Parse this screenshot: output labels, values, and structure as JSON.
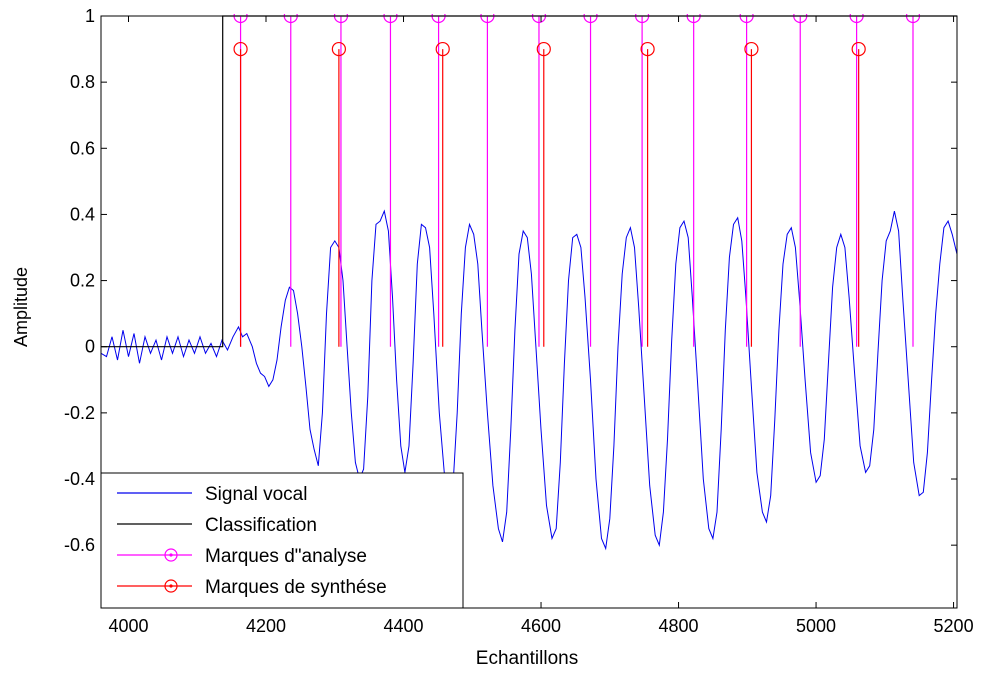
{
  "chart_data": {
    "type": "line",
    "title": "",
    "xlabel": "Echantillons",
    "ylabel": "Amplitude",
    "xlim": [
      3960,
      5205
    ],
    "ylim": [
      -0.79,
      1.0
    ],
    "grid": false,
    "legend_position": "bottom-left",
    "x_ticks": [
      4000,
      4200,
      4400,
      4600,
      4800,
      5000,
      5200
    ],
    "x_tick_labels": [
      "4000",
      "4200",
      "4400",
      "4600",
      "4800",
      "5000",
      "5200"
    ],
    "y_ticks": [
      1,
      0.8,
      0.6,
      0.4,
      0.2,
      0,
      -0.2,
      -0.4,
      -0.6
    ],
    "y_tick_labels": [
      "1",
      "0.8",
      "0.6",
      "0.4",
      "0.2",
      "0",
      "-0.2",
      "-0.4",
      "-0.6"
    ],
    "series": [
      {
        "name": "Signal vocal",
        "color": "#0000ee",
        "kind": "line",
        "points": [
          [
            3960,
            -0.02
          ],
          [
            3968,
            -0.03
          ],
          [
            3976,
            0.03
          ],
          [
            3984,
            -0.04
          ],
          [
            3992,
            0.05
          ],
          [
            4000,
            -0.03
          ],
          [
            4008,
            0.04
          ],
          [
            4016,
            -0.05
          ],
          [
            4024,
            0.03
          ],
          [
            4032,
            -0.02
          ],
          [
            4040,
            0.02
          ],
          [
            4048,
            -0.04
          ],
          [
            4056,
            0.03
          ],
          [
            4064,
            -0.02
          ],
          [
            4072,
            0.03
          ],
          [
            4080,
            -0.03
          ],
          [
            4088,
            0.02
          ],
          [
            4096,
            -0.02
          ],
          [
            4104,
            0.03
          ],
          [
            4112,
            -0.02
          ],
          [
            4120,
            0.01
          ],
          [
            4128,
            -0.03
          ],
          [
            4136,
            0.02
          ],
          [
            4144,
            -0.01
          ],
          [
            4152,
            0.03
          ],
          [
            4160,
            0.06
          ],
          [
            4166,
            0.03
          ],
          [
            4172,
            0.04
          ],
          [
            4180,
            0.0
          ],
          [
            4186,
            -0.05
          ],
          [
            4192,
            -0.08
          ],
          [
            4198,
            -0.09
          ],
          [
            4204,
            -0.12
          ],
          [
            4210,
            -0.1
          ],
          [
            4216,
            -0.04
          ],
          [
            4222,
            0.06
          ],
          [
            4228,
            0.14
          ],
          [
            4234,
            0.18
          ],
          [
            4240,
            0.17
          ],
          [
            4246,
            0.1
          ],
          [
            4252,
            0.0
          ],
          [
            4258,
            -0.12
          ],
          [
            4264,
            -0.25
          ],
          [
            4270,
            -0.31
          ],
          [
            4276,
            -0.36
          ],
          [
            4282,
            -0.2
          ],
          [
            4288,
            0.1
          ],
          [
            4294,
            0.3
          ],
          [
            4300,
            0.32
          ],
          [
            4306,
            0.3
          ],
          [
            4312,
            0.2
          ],
          [
            4318,
            0.0
          ],
          [
            4324,
            -0.2
          ],
          [
            4330,
            -0.35
          ],
          [
            4336,
            -0.4
          ],
          [
            4342,
            -0.37
          ],
          [
            4348,
            -0.15
          ],
          [
            4354,
            0.2
          ],
          [
            4360,
            0.37
          ],
          [
            4366,
            0.38
          ],
          [
            4372,
            0.41
          ],
          [
            4378,
            0.35
          ],
          [
            4384,
            0.15
          ],
          [
            4390,
            -0.1
          ],
          [
            4396,
            -0.3
          ],
          [
            4402,
            -0.38
          ],
          [
            4408,
            -0.3
          ],
          [
            4414,
            -0.05
          ],
          [
            4420,
            0.25
          ],
          [
            4426,
            0.37
          ],
          [
            4432,
            0.36
          ],
          [
            4438,
            0.3
          ],
          [
            4444,
            0.1
          ],
          [
            4452,
            -0.2
          ],
          [
            4460,
            -0.4
          ],
          [
            4466,
            -0.48
          ],
          [
            4472,
            -0.42
          ],
          [
            4478,
            -0.2
          ],
          [
            4484,
            0.1
          ],
          [
            4490,
            0.3
          ],
          [
            4496,
            0.37
          ],
          [
            4502,
            0.34
          ],
          [
            4508,
            0.25
          ],
          [
            4514,
            0.05
          ],
          [
            4522,
            -0.2
          ],
          [
            4530,
            -0.42
          ],
          [
            4538,
            -0.55
          ],
          [
            4544,
            -0.59
          ],
          [
            4550,
            -0.5
          ],
          [
            4556,
            -0.25
          ],
          [
            4562,
            0.05
          ],
          [
            4568,
            0.28
          ],
          [
            4574,
            0.35
          ],
          [
            4580,
            0.33
          ],
          [
            4586,
            0.22
          ],
          [
            4592,
            0.02
          ],
          [
            4600,
            -0.25
          ],
          [
            4608,
            -0.48
          ],
          [
            4616,
            -0.58
          ],
          [
            4622,
            -0.55
          ],
          [
            4628,
            -0.35
          ],
          [
            4634,
            -0.05
          ],
          [
            4640,
            0.2
          ],
          [
            4646,
            0.33
          ],
          [
            4652,
            0.34
          ],
          [
            4658,
            0.3
          ],
          [
            4664,
            0.15
          ],
          [
            4672,
            -0.1
          ],
          [
            4680,
            -0.4
          ],
          [
            4688,
            -0.58
          ],
          [
            4694,
            -0.61
          ],
          [
            4700,
            -0.52
          ],
          [
            4706,
            -0.3
          ],
          [
            4712,
            0.0
          ],
          [
            4718,
            0.22
          ],
          [
            4724,
            0.33
          ],
          [
            4730,
            0.36
          ],
          [
            4736,
            0.3
          ],
          [
            4742,
            0.12
          ],
          [
            4750,
            -0.15
          ],
          [
            4758,
            -0.42
          ],
          [
            4766,
            -0.57
          ],
          [
            4772,
            -0.6
          ],
          [
            4778,
            -0.5
          ],
          [
            4784,
            -0.28
          ],
          [
            4790,
            0.02
          ],
          [
            4796,
            0.25
          ],
          [
            4802,
            0.36
          ],
          [
            4808,
            0.38
          ],
          [
            4814,
            0.33
          ],
          [
            4820,
            0.15
          ],
          [
            4828,
            -0.12
          ],
          [
            4836,
            -0.4
          ],
          [
            4844,
            -0.55
          ],
          [
            4850,
            -0.58
          ],
          [
            4856,
            -0.5
          ],
          [
            4862,
            -0.25
          ],
          [
            4868,
            0.05
          ],
          [
            4874,
            0.27
          ],
          [
            4880,
            0.37
          ],
          [
            4886,
            0.39
          ],
          [
            4892,
            0.32
          ],
          [
            4898,
            0.15
          ],
          [
            4906,
            -0.12
          ],
          [
            4914,
            -0.38
          ],
          [
            4922,
            -0.5
          ],
          [
            4928,
            -0.53
          ],
          [
            4934,
            -0.45
          ],
          [
            4940,
            -0.22
          ],
          [
            4946,
            0.05
          ],
          [
            4952,
            0.25
          ],
          [
            4958,
            0.34
          ],
          [
            4964,
            0.36
          ],
          [
            4970,
            0.3
          ],
          [
            4976,
            0.14
          ],
          [
            4984,
            -0.1
          ],
          [
            4992,
            -0.32
          ],
          [
            5000,
            -0.41
          ],
          [
            5006,
            -0.39
          ],
          [
            5012,
            -0.28
          ],
          [
            5018,
            -0.05
          ],
          [
            5024,
            0.18
          ],
          [
            5030,
            0.3
          ],
          [
            5036,
            0.34
          ],
          [
            5042,
            0.3
          ],
          [
            5048,
            0.15
          ],
          [
            5056,
            -0.08
          ],
          [
            5064,
            -0.3
          ],
          [
            5072,
            -0.38
          ],
          [
            5078,
            -0.36
          ],
          [
            5084,
            -0.25
          ],
          [
            5090,
            -0.02
          ],
          [
            5096,
            0.2
          ],
          [
            5102,
            0.32
          ],
          [
            5108,
            0.35
          ],
          [
            5114,
            0.41
          ],
          [
            5120,
            0.35
          ],
          [
            5126,
            0.15
          ],
          [
            5134,
            -0.1
          ],
          [
            5142,
            -0.35
          ],
          [
            5150,
            -0.45
          ],
          [
            5156,
            -0.44
          ],
          [
            5162,
            -0.32
          ],
          [
            5168,
            -0.1
          ],
          [
            5174,
            0.1
          ],
          [
            5180,
            0.25
          ],
          [
            5186,
            0.36
          ],
          [
            5192,
            0.38
          ],
          [
            5198,
            0.34
          ],
          [
            5205,
            0.28
          ]
        ]
      },
      {
        "name": "Classification",
        "color": "#000000",
        "kind": "step",
        "points": [
          [
            3960,
            0
          ],
          [
            4137,
            0
          ],
          [
            4137,
            1
          ],
          [
            5205,
            1
          ]
        ]
      },
      {
        "name": "Marques d\"analyse",
        "color": "#ff00ff",
        "kind": "stem",
        "marker": "circle",
        "stem_value": 1,
        "x": [
          4163,
          4236,
          4309,
          4381,
          4451,
          4522,
          4597,
          4672,
          4747,
          4822,
          4899,
          4977,
          5059,
          5141
        ]
      },
      {
        "name": "Marques de synthése",
        "color": "#ff0000",
        "kind": "stem",
        "marker": "circle",
        "stem_value": 0.9,
        "x": [
          4163,
          4306,
          4457,
          4604,
          4755,
          4906,
          5062
        ]
      }
    ]
  }
}
